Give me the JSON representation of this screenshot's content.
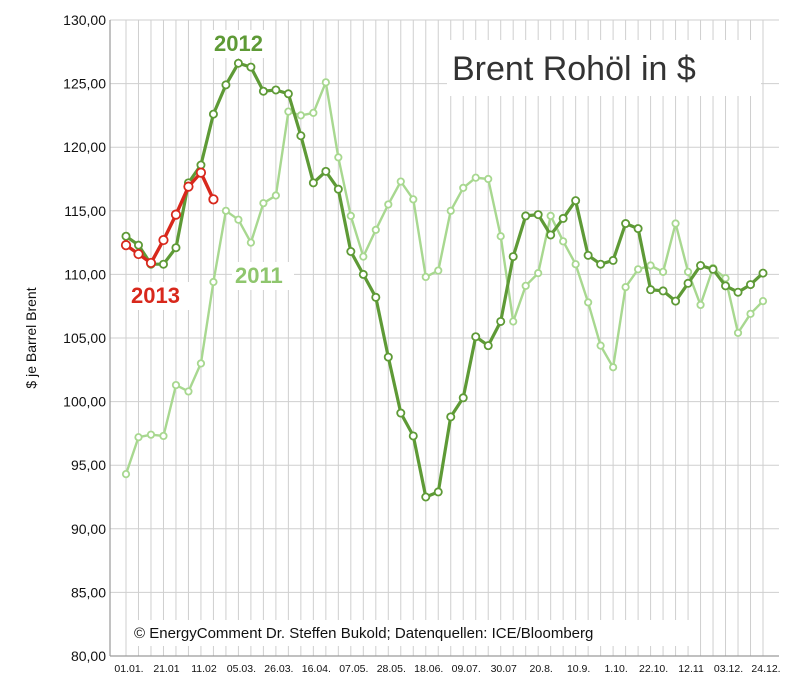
{
  "chart_data": {
    "type": "line",
    "title": "Brent Rohöl in $",
    "ylabel": "$ je Barrel  Brent",
    "xlabel": "",
    "ylim": [
      80,
      130
    ],
    "ystep": 5,
    "grid": true,
    "yticks": [
      "80,00",
      "85,00",
      "90,00",
      "95,00",
      "100,00",
      "105,00",
      "110,00",
      "115,00",
      "120,00",
      "125,00",
      "130,00"
    ],
    "x_tick_labels": [
      "01.01.",
      "21.01",
      "11.02",
      "05.03.",
      "26.03.",
      "16.04.",
      "07.05.",
      "28.05.",
      "18.06.",
      "09.07.",
      "30.07",
      "20.8.",
      "10.9.",
      "1.10.",
      "22.10.",
      "12.11",
      "03.12.",
      "24.12."
    ],
    "credit": "© EnergyComment Dr. Steffen Bukold; Datenquellen: ICE/Bloomberg",
    "colors": {
      "2011": "#a8d890",
      "2012": "#5e9a36",
      "2013": "#d8281c"
    },
    "series": [
      {
        "name": "2011",
        "values": [
          94.3,
          97.2,
          97.4,
          97.3,
          101.3,
          100.8,
          103.0,
          109.4,
          115.0,
          114.3,
          112.5,
          115.6,
          116.2,
          122.8,
          122.5,
          122.7,
          125.1,
          119.2,
          114.6,
          111.4,
          113.5,
          115.5,
          117.3,
          115.9,
          109.8,
          110.3,
          115.0,
          116.8,
          117.6,
          117.5,
          113.0,
          106.3,
          109.1,
          110.1,
          114.6,
          112.6,
          110.8,
          107.8,
          104.4,
          102.7,
          109.0,
          110.4,
          110.7,
          110.2,
          114.0,
          110.2,
          107.6,
          110.5,
          109.7,
          105.4,
          106.9,
          107.9
        ]
      },
      {
        "name": "2012",
        "values": [
          113.0,
          112.3,
          110.8,
          110.8,
          112.1,
          117.2,
          118.6,
          122.6,
          124.9,
          126.6,
          126.3,
          124.4,
          124.5,
          124.2,
          120.9,
          117.2,
          118.1,
          116.7,
          111.8,
          110.0,
          108.2,
          103.5,
          99.1,
          97.3,
          92.5,
          92.9,
          98.8,
          100.3,
          105.1,
          104.4,
          106.3,
          111.4,
          114.6,
          114.7,
          113.1,
          114.4,
          115.8,
          111.5,
          110.8,
          111.1,
          114.0,
          113.6,
          108.8,
          108.7,
          107.9,
          109.3,
          110.7,
          110.4,
          109.1,
          108.6,
          109.2,
          110.1
        ]
      },
      {
        "name": "2013",
        "values": [
          112.3,
          111.6,
          110.9,
          112.7,
          114.7,
          116.9,
          118.0,
          115.9
        ]
      }
    ],
    "series_labels": {
      "2012": "2012",
      "2011": "2011",
      "2013": "2013"
    }
  }
}
